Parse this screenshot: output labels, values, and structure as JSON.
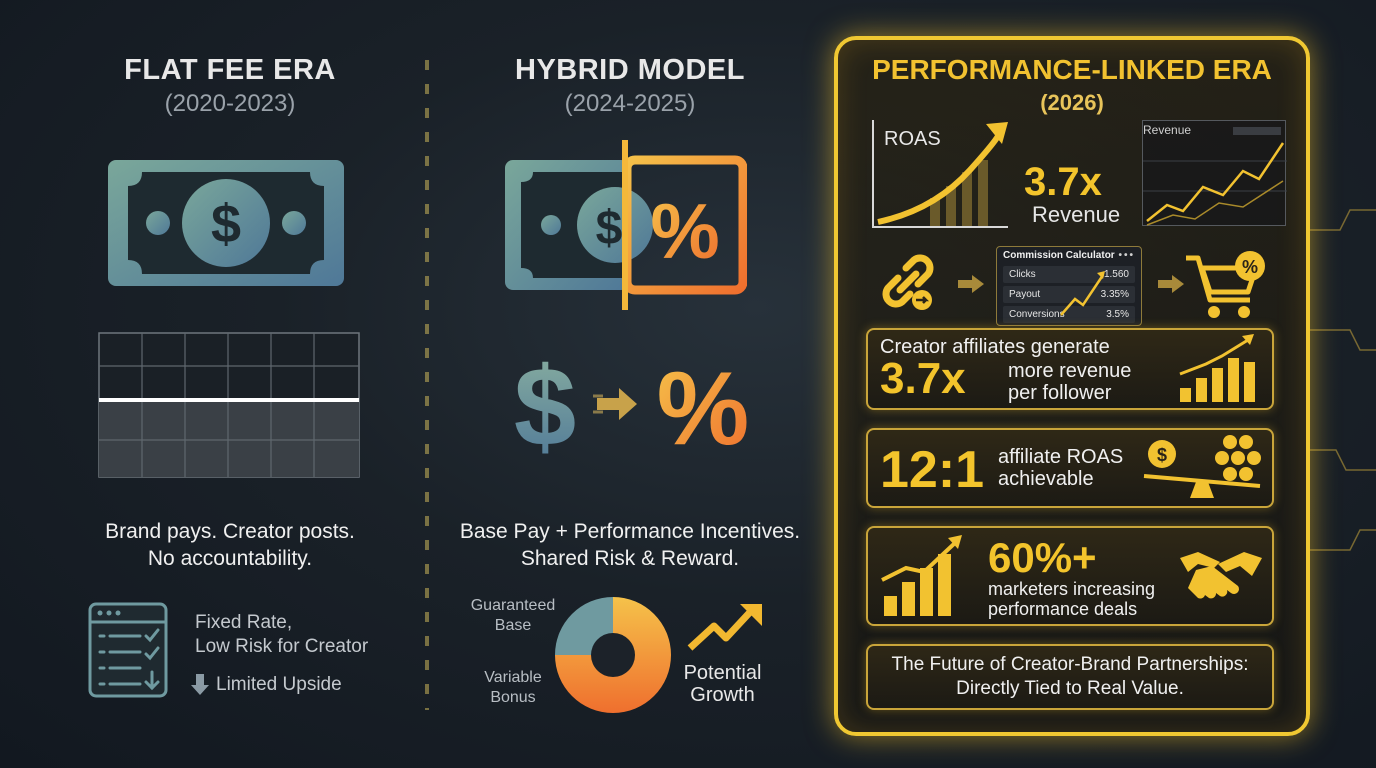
{
  "flat": {
    "title": "FLAT FEE ERA",
    "years": "(2020-2023)",
    "desc1": "Brand pays. Creator posts.",
    "desc2": "No accountability.",
    "note1": "Fixed Rate,",
    "note2": "Low Risk for Creator",
    "note3": "Limited Upside"
  },
  "hybrid": {
    "title": "HYBRID MODEL",
    "years": "(2024-2025)",
    "desc1": "Base Pay + Performance Incentives.",
    "desc2": "Shared Risk & Reward.",
    "legend_guaranteed_1": "Guaranteed",
    "legend_guaranteed_2": "Base",
    "legend_variable_1": "Variable",
    "legend_variable_2": "Bonus",
    "potential_1": "Potential",
    "potential_2": "Growth"
  },
  "performance": {
    "title": "PERFORMANCE-LINKED ERA",
    "years": "(2026)",
    "roas_label": "ROAS",
    "revenue_label": "Revenue",
    "multiplier": "3.7x",
    "multiplier_label": "Revenue",
    "calculator": {
      "title": "Commission Calculator",
      "rows": [
        {
          "label": "Clicks",
          "value": "1.560"
        },
        {
          "label": "Payout",
          "value": "3.35%"
        },
        {
          "label": "Conversions",
          "value": "3.5%"
        }
      ]
    },
    "stat1": {
      "head": "Creator affiliates generate",
      "value": "3.7x",
      "text1": "more revenue",
      "text2": "per follower"
    },
    "stat2": {
      "value": "12:1",
      "text1": "affiliate ROAS",
      "text2": "achievable"
    },
    "stat3": {
      "value": "60%+",
      "text1": "marketers increasing",
      "text2": "performance deals"
    },
    "footer1": "The Future of Creator-Brand Partnerships:",
    "footer2": "Directly Tied to Real Value."
  },
  "colors": {
    "gold": "#f2c230",
    "flat_money": "#6f9a8a",
    "hybrid_orange": "#f28a2e"
  },
  "icons": [
    "dollar-bill-icon",
    "percent-icon",
    "checklist-icon",
    "arrow-down-icon",
    "donut-chart-icon",
    "trend-up-icon",
    "link-icon",
    "shopping-cart-icon",
    "coin-scale-icon",
    "handshake-icon",
    "bar-chart-icon"
  ],
  "hybrid_split": {
    "guaranteed_base": 0.25,
    "variable_bonus": 0.75
  }
}
